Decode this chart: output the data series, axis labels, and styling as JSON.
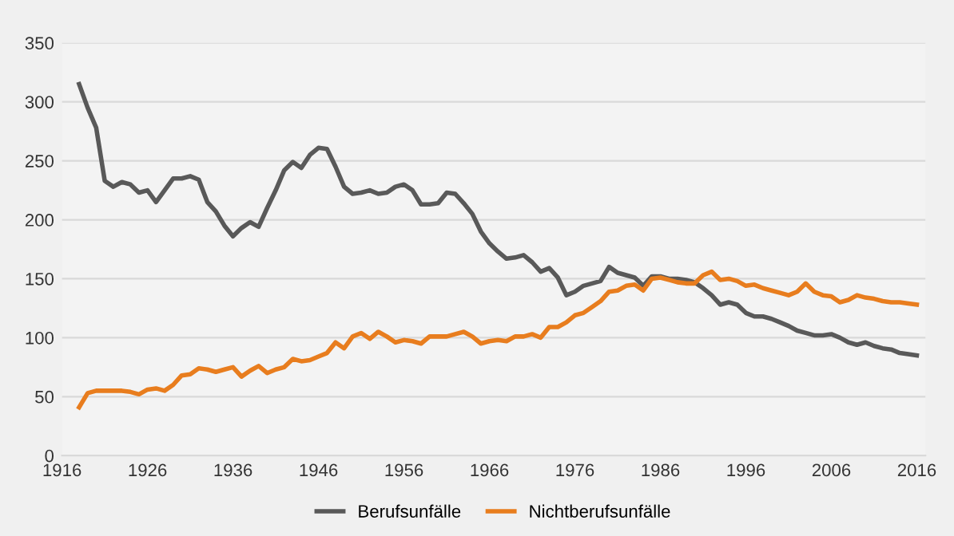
{
  "chart_data": {
    "type": "line",
    "x": [
      1918,
      1919,
      1920,
      1921,
      1922,
      1923,
      1924,
      1925,
      1926,
      1927,
      1928,
      1929,
      1930,
      1931,
      1932,
      1933,
      1934,
      1935,
      1936,
      1937,
      1938,
      1939,
      1940,
      1941,
      1942,
      1943,
      1944,
      1945,
      1946,
      1947,
      1948,
      1949,
      1950,
      1951,
      1952,
      1953,
      1954,
      1955,
      1956,
      1957,
      1958,
      1959,
      1960,
      1961,
      1962,
      1963,
      1964,
      1965,
      1966,
      1967,
      1968,
      1969,
      1970,
      1971,
      1972,
      1973,
      1974,
      1975,
      1976,
      1977,
      1978,
      1979,
      1980,
      1981,
      1982,
      1983,
      1984,
      1985,
      1986,
      1987,
      1988,
      1989,
      1990,
      1991,
      1992,
      1993,
      1994,
      1995,
      1996,
      1997,
      1998,
      1999,
      2000,
      2001,
      2002,
      2003,
      2004,
      2005,
      2006,
      2007,
      2008,
      2009,
      2010,
      2011,
      2012,
      2013,
      2014,
      2015,
      2016
    ],
    "series": [
      {
        "name": "Berufsunfälle",
        "color": "#595959",
        "values": [
          315,
          295,
          278,
          233,
          228,
          232,
          230,
          223,
          225,
          215,
          225,
          235,
          235,
          237,
          234,
          215,
          207,
          195,
          186,
          193,
          198,
          194,
          210,
          225,
          242,
          249,
          244,
          255,
          261,
          260,
          245,
          228,
          222,
          223,
          225,
          222,
          223,
          228,
          230,
          225,
          213,
          213,
          214,
          223,
          222,
          214,
          205,
          190,
          180,
          173,
          167,
          168,
          170,
          164,
          156,
          159,
          151,
          136,
          139,
          144,
          146,
          148,
          160,
          155,
          153,
          151,
          144,
          152,
          152,
          150,
          150,
          149,
          147,
          142,
          136,
          128,
          130,
          128,
          121,
          118,
          118,
          116,
          113,
          110,
          106,
          104,
          102,
          102,
          103,
          100,
          96,
          94,
          96,
          93,
          91,
          90,
          87,
          86,
          85
        ]
      },
      {
        "name": "Nichtberufsunfälle",
        "color": "#e87d1e",
        "values": [
          41,
          53,
          55,
          55,
          55,
          55,
          54,
          52,
          56,
          57,
          55,
          60,
          68,
          69,
          74,
          73,
          71,
          73,
          75,
          67,
          72,
          76,
          70,
          73,
          75,
          82,
          80,
          81,
          84,
          87,
          96,
          91,
          101,
          104,
          99,
          105,
          101,
          96,
          98,
          97,
          95,
          101,
          101,
          101,
          103,
          105,
          101,
          95,
          97,
          98,
          97,
          101,
          101,
          103,
          100,
          109,
          109,
          113,
          119,
          121,
          126,
          131,
          139,
          140,
          144,
          145,
          140,
          150,
          151,
          149,
          147,
          146,
          146,
          153,
          156,
          149,
          150,
          148,
          144,
          145,
          142,
          140,
          138,
          136,
          139,
          146,
          139,
          136,
          135,
          130,
          132,
          136,
          134,
          133,
          131,
          130,
          130,
          129,
          128
        ]
      }
    ],
    "xlim": [
      1916,
      2017
    ],
    "xticks": [
      1916,
      1926,
      1936,
      1946,
      1956,
      1966,
      1976,
      1986,
      1996,
      2006,
      2016
    ],
    "ylim": [
      0,
      350
    ],
    "yticks": [
      0,
      50,
      100,
      150,
      200,
      250,
      300,
      350
    ],
    "grid": "y",
    "legend": "bottom",
    "marker": "none",
    "line_style": "solid"
  }
}
